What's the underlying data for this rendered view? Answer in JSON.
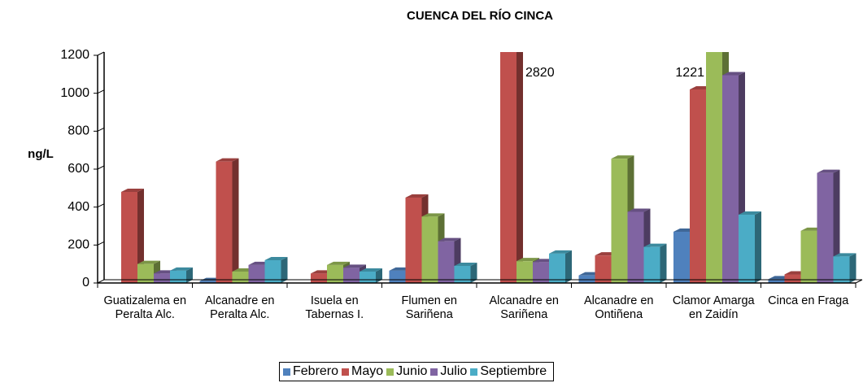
{
  "chart_data": {
    "type": "bar3d",
    "title": "CUENCA DEL RÍO CINCA",
    "y_label": "ng/L",
    "categories": [
      "Guatizalema en Peralta Alc.",
      "Alcanadre en Peralta Alc.",
      "Isuela en Tabernas I.",
      "Flumen en Sariñena",
      "Alcanadre en Sariñena",
      "Alcanadre en Ontiñena",
      "Clamor Amarga en Zaidín",
      "Cinca en Fraga"
    ],
    "series": [
      {
        "name": "Febrero",
        "color": "#4f81bd",
        "values": [
          null,
          10,
          null,
          65,
          null,
          40,
          270,
          20
        ]
      },
      {
        "name": "Mayo",
        "color": "#c0504d",
        "values": [
          480,
          640,
          50,
          450,
          2820,
          145,
          1020,
          45
        ],
        "value_labels": [
          null,
          null,
          null,
          null,
          "2820",
          null,
          null,
          null
        ]
      },
      {
        "name": "Junio",
        "color": "#9bbb59",
        "values": [
          100,
          60,
          95,
          350,
          115,
          655,
          1221,
          275
        ],
        "value_labels": [
          null,
          null,
          null,
          null,
          null,
          null,
          "1221",
          null
        ]
      },
      {
        "name": "Julio",
        "color": "#8064a2",
        "values": [
          50,
          95,
          80,
          220,
          110,
          375,
          1095,
          580
        ]
      },
      {
        "name": "Septiembre",
        "color": "#4bacc6",
        "values": [
          65,
          120,
          60,
          90,
          155,
          190,
          360,
          140
        ]
      }
    ],
    "ylim": [
      0,
      1200
    ],
    "yticks": [
      0,
      200,
      400,
      600,
      800,
      1000,
      1200
    ],
    "legend": "bottom"
  }
}
